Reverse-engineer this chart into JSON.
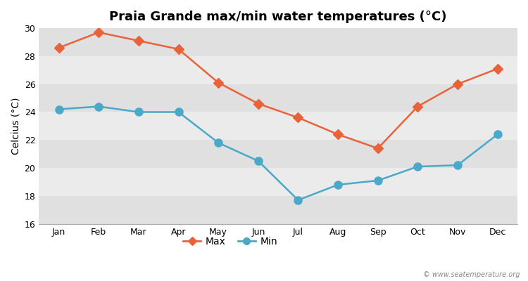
{
  "title": "Praia Grande max/min water temperatures (°C)",
  "ylabel": "Celcius (°C)",
  "months": [
    "Jan",
    "Feb",
    "Mar",
    "Apr",
    "May",
    "Jun",
    "Jul",
    "Aug",
    "Sep",
    "Oct",
    "Nov",
    "Dec"
  ],
  "max_temps": [
    28.6,
    29.7,
    29.1,
    28.5,
    26.1,
    24.6,
    23.6,
    22.4,
    21.4,
    24.4,
    26.0,
    27.1
  ],
  "min_temps": [
    24.2,
    24.4,
    24.0,
    24.0,
    21.8,
    20.5,
    17.7,
    18.8,
    19.1,
    20.1,
    20.2,
    22.4
  ],
  "max_color": "#e8623a",
  "min_color": "#4aa8c8",
  "fig_bg_color": "#ffffff",
  "plot_bg_color": "#ffffff",
  "band_color_dark": "#e0e0e0",
  "band_color_light": "#ebebeb",
  "ylim": [
    16,
    30
  ],
  "yticks": [
    16,
    18,
    20,
    22,
    24,
    26,
    28,
    30
  ],
  "title_fontsize": 13,
  "axis_label_fontsize": 10,
  "tick_fontsize": 9,
  "legend_fontsize": 10,
  "watermark": "© www.seatemperature.org",
  "marker_max": "D",
  "marker_min": "o",
  "line_width": 1.8,
  "marker_size_max": 7,
  "marker_size_min": 8
}
